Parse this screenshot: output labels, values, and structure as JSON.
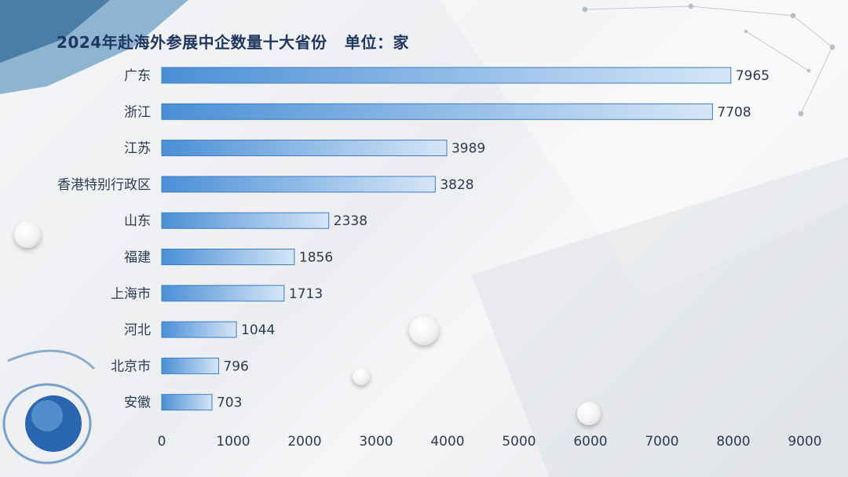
{
  "title": "2024年赴海外参展中企数量十大省份   单位：家",
  "chart_data": {
    "type": "bar",
    "orientation": "horizontal",
    "title": "2024年赴海外参展中企数量十大省份",
    "unit_label": "单位：家",
    "categories": [
      "广东",
      "浙江",
      "江苏",
      "香港特别行政区",
      "山东",
      "福建",
      "上海市",
      "河北",
      "北京市",
      "安徽"
    ],
    "values": [
      7965,
      7708,
      3989,
      3828,
      2338,
      1856,
      1713,
      1044,
      796,
      703
    ],
    "xlim": [
      0,
      9000
    ],
    "xticks": [
      0,
      1000,
      2000,
      3000,
      4000,
      5000,
      6000,
      7000,
      8000,
      9000
    ],
    "xlabel": "",
    "ylabel": "",
    "grid": false,
    "colors": {
      "bar_start": "#4a8fd6",
      "bar_end": "#d6e6f7",
      "text": "#2a3a55",
      "title": "#1f3760"
    }
  }
}
